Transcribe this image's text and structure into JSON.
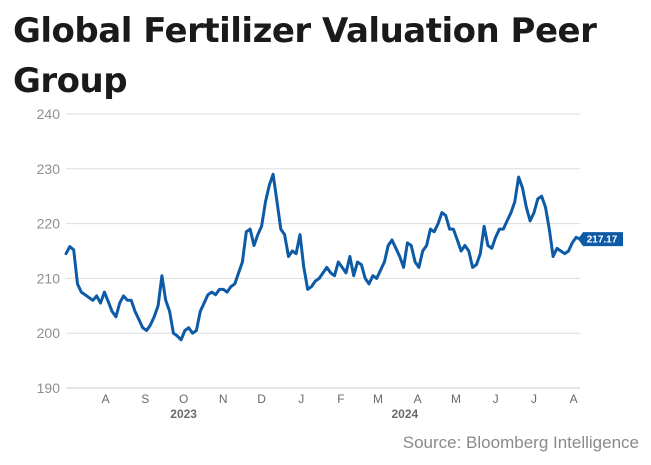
{
  "title": "Global Fertilizer Valuation Peer Group",
  "source": "Source: Bloomberg Intelligence",
  "colors": {
    "line": "#0d5aa7",
    "grid": "#dddddd",
    "axis": "#c9c9c9",
    "label_bg": "#0d5aa7"
  },
  "chart_data": {
    "type": "line",
    "title": "Global Fertilizer Valuation Peer Group",
    "ylim": [
      190,
      240
    ],
    "yticks": [
      190,
      200,
      210,
      220,
      230,
      240
    ],
    "grid": true,
    "xlim": [
      "2023-07-15",
      "2024-08-20"
    ],
    "month_ticks": [
      {
        "label": "A",
        "date": "2023-08-15"
      },
      {
        "label": "S",
        "date": "2023-09-15"
      },
      {
        "label": "O",
        "date": "2023-10-15"
      },
      {
        "label": "N",
        "date": "2023-11-15"
      },
      {
        "label": "D",
        "date": "2023-12-15"
      },
      {
        "label": "J",
        "date": "2024-01-15"
      },
      {
        "label": "F",
        "date": "2024-02-15"
      },
      {
        "label": "M",
        "date": "2024-03-15"
      },
      {
        "label": "A",
        "date": "2024-04-15"
      },
      {
        "label": "M",
        "date": "2024-05-15"
      },
      {
        "label": "J",
        "date": "2024-06-15"
      },
      {
        "label": "J",
        "date": "2024-07-15"
      },
      {
        "label": "A",
        "date": "2024-08-15"
      }
    ],
    "year_labels": [
      {
        "label": "2023",
        "date": "2023-10-15"
      },
      {
        "label": "2024",
        "date": "2024-04-05"
      }
    ],
    "last_value_label": "217.17",
    "series": [
      {
        "x": [
          "2023-07-15",
          "2023-07-18",
          "2023-07-21",
          "2023-07-24",
          "2023-07-27",
          "2023-07-30",
          "2023-08-02",
          "2023-08-05",
          "2023-08-08",
          "2023-08-11",
          "2023-08-14",
          "2023-08-17",
          "2023-08-20",
          "2023-08-23",
          "2023-08-26",
          "2023-08-29",
          "2023-09-01",
          "2023-09-04",
          "2023-09-07",
          "2023-09-10",
          "2023-09-13",
          "2023-09-16",
          "2023-09-19",
          "2023-09-22",
          "2023-09-25",
          "2023-09-28",
          "2023-10-01",
          "2023-10-04",
          "2023-10-07",
          "2023-10-10",
          "2023-10-13",
          "2023-10-16",
          "2023-10-19",
          "2023-10-22",
          "2023-10-25",
          "2023-10-28",
          "2023-10-31",
          "2023-11-03",
          "2023-11-06",
          "2023-11-09",
          "2023-11-12",
          "2023-11-15",
          "2023-11-18",
          "2023-11-21",
          "2023-11-24",
          "2023-11-27",
          "2023-11-30",
          "2023-12-03",
          "2023-12-06",
          "2023-12-09",
          "2023-12-12",
          "2023-12-15",
          "2023-12-18",
          "2023-12-21",
          "2023-12-24",
          "2023-12-27",
          "2023-12-30",
          "2024-01-02",
          "2024-01-05",
          "2024-01-08",
          "2024-01-11",
          "2024-01-14",
          "2024-01-17",
          "2024-01-20",
          "2024-01-23",
          "2024-01-26",
          "2024-01-29",
          "2024-02-01",
          "2024-02-04",
          "2024-02-07",
          "2024-02-10",
          "2024-02-13",
          "2024-02-16",
          "2024-02-19",
          "2024-02-22",
          "2024-02-25",
          "2024-02-28",
          "2024-03-02",
          "2024-03-05",
          "2024-03-08",
          "2024-03-11",
          "2024-03-14",
          "2024-03-17",
          "2024-03-20",
          "2024-03-23",
          "2024-03-26",
          "2024-03-29",
          "2024-04-01",
          "2024-04-04",
          "2024-04-07",
          "2024-04-10",
          "2024-04-13",
          "2024-04-16",
          "2024-04-19",
          "2024-04-22",
          "2024-04-25",
          "2024-04-28",
          "2024-05-01",
          "2024-05-04",
          "2024-05-07",
          "2024-05-10",
          "2024-05-13",
          "2024-05-16",
          "2024-05-19",
          "2024-05-22",
          "2024-05-25",
          "2024-05-28",
          "2024-05-31",
          "2024-06-03",
          "2024-06-06",
          "2024-06-09",
          "2024-06-12",
          "2024-06-15",
          "2024-06-18",
          "2024-06-21",
          "2024-06-24",
          "2024-06-27",
          "2024-06-30",
          "2024-07-03",
          "2024-07-06",
          "2024-07-09",
          "2024-07-12",
          "2024-07-15",
          "2024-07-18",
          "2024-07-21",
          "2024-07-24",
          "2024-07-27",
          "2024-07-30",
          "2024-08-02",
          "2024-08-05",
          "2024-08-08",
          "2024-08-11",
          "2024-08-14",
          "2024-08-17",
          "2024-08-20"
        ],
        "y": [
          214.5,
          215.8,
          215.2,
          209,
          207.5,
          207,
          206.5,
          206,
          206.8,
          205.5,
          207.5,
          205.8,
          204,
          203,
          205.5,
          206.8,
          206,
          206,
          204,
          202.5,
          201,
          200.5,
          201.5,
          203,
          205,
          210.5,
          206,
          204,
          200,
          199.5,
          198.8,
          200.5,
          201,
          200,
          200.5,
          204,
          205.5,
          207,
          207.5,
          207,
          208,
          208,
          207.5,
          208.5,
          209,
          211,
          213,
          218.5,
          219,
          216,
          218,
          219.5,
          224,
          227,
          229,
          224,
          219,
          218,
          214,
          215,
          214.5,
          218,
          212,
          208,
          208.5,
          209.5,
          210,
          211,
          212,
          211,
          210.5,
          213,
          212,
          211,
          214,
          210.5,
          213,
          212.5,
          210,
          209,
          210.5,
          210,
          211.5,
          213,
          216,
          217,
          215.5,
          214,
          212,
          216.5,
          216,
          213,
          212,
          215,
          216,
          219,
          218.5,
          220,
          222,
          221.5,
          219,
          219,
          217,
          215,
          216,
          215,
          212,
          212.5,
          214.5,
          219.5,
          216,
          215.5,
          217.5,
          219,
          219,
          220.5,
          222,
          224,
          228.5,
          226.5,
          223,
          220.5,
          222,
          224.5,
          225,
          223,
          219,
          214,
          215.5,
          215,
          214.5,
          215,
          216.5,
          217.5,
          217.17
        ]
      }
    ]
  }
}
